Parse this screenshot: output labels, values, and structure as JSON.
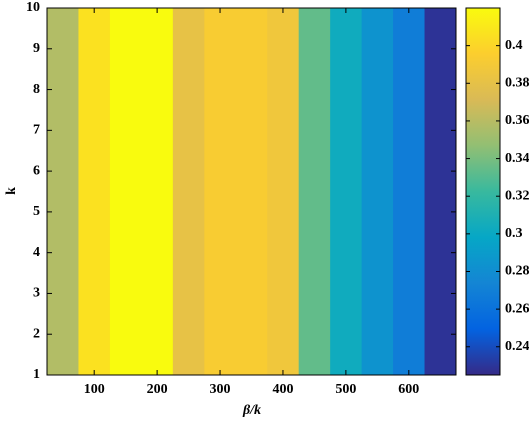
{
  "chart_data": {
    "type": "heatmap",
    "xlabel": "β/k",
    "ylabel": "k",
    "x": [
      50,
      100,
      150,
      200,
      250,
      300,
      350,
      400,
      450,
      500,
      550,
      600,
      650
    ],
    "values": [
      0.358,
      0.406,
      0.42,
      0.42,
      0.381,
      0.393,
      0.393,
      0.387,
      0.334,
      0.303,
      0.284,
      0.268,
      0.229
    ],
    "xlim": [
      25,
      675
    ],
    "xticks": [
      100,
      200,
      300,
      400,
      500,
      600
    ],
    "ylim": [
      1,
      10
    ],
    "yticks": [
      1,
      2,
      3,
      4,
      5,
      6,
      7,
      8,
      9,
      10
    ],
    "colorbar": {
      "lim": [
        0.225,
        0.42
      ],
      "ticks": [
        0.24,
        0.26,
        0.28,
        0.3,
        0.32,
        0.34,
        0.36,
        0.38,
        0.4
      ]
    },
    "colormap": [
      "#352a87",
      "#0363e1",
      "#1485d4",
      "#06a7c6",
      "#38b99e",
      "#92bf73",
      "#d9ba56",
      "#fcce2e",
      "#f9fb0e"
    ]
  }
}
